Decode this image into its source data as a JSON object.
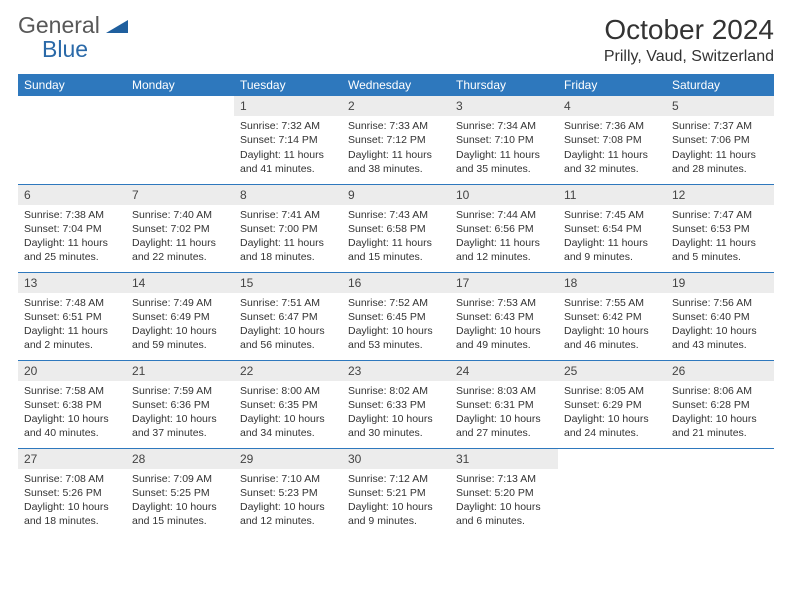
{
  "brand": {
    "name1": "General",
    "name2": "Blue",
    "logo_fill": "#1f5f9e"
  },
  "month_title": "October 2024",
  "location": "Prilly, Vaud, Switzerland",
  "colors": {
    "header_bg": "#2e78bd",
    "header_fg": "#ffffff",
    "daynum_bg": "#ececec",
    "rule": "#2e78bd"
  },
  "day_headers": [
    "Sunday",
    "Monday",
    "Tuesday",
    "Wednesday",
    "Thursday",
    "Friday",
    "Saturday"
  ],
  "weeks": [
    [
      {
        "n": "",
        "sr": "",
        "ss": "",
        "dl": ""
      },
      {
        "n": "",
        "sr": "",
        "ss": "",
        "dl": ""
      },
      {
        "n": "1",
        "sr": "Sunrise: 7:32 AM",
        "ss": "Sunset: 7:14 PM",
        "dl": "Daylight: 11 hours and 41 minutes."
      },
      {
        "n": "2",
        "sr": "Sunrise: 7:33 AM",
        "ss": "Sunset: 7:12 PM",
        "dl": "Daylight: 11 hours and 38 minutes."
      },
      {
        "n": "3",
        "sr": "Sunrise: 7:34 AM",
        "ss": "Sunset: 7:10 PM",
        "dl": "Daylight: 11 hours and 35 minutes."
      },
      {
        "n": "4",
        "sr": "Sunrise: 7:36 AM",
        "ss": "Sunset: 7:08 PM",
        "dl": "Daylight: 11 hours and 32 minutes."
      },
      {
        "n": "5",
        "sr": "Sunrise: 7:37 AM",
        "ss": "Sunset: 7:06 PM",
        "dl": "Daylight: 11 hours and 28 minutes."
      }
    ],
    [
      {
        "n": "6",
        "sr": "Sunrise: 7:38 AM",
        "ss": "Sunset: 7:04 PM",
        "dl": "Daylight: 11 hours and 25 minutes."
      },
      {
        "n": "7",
        "sr": "Sunrise: 7:40 AM",
        "ss": "Sunset: 7:02 PM",
        "dl": "Daylight: 11 hours and 22 minutes."
      },
      {
        "n": "8",
        "sr": "Sunrise: 7:41 AM",
        "ss": "Sunset: 7:00 PM",
        "dl": "Daylight: 11 hours and 18 minutes."
      },
      {
        "n": "9",
        "sr": "Sunrise: 7:43 AM",
        "ss": "Sunset: 6:58 PM",
        "dl": "Daylight: 11 hours and 15 minutes."
      },
      {
        "n": "10",
        "sr": "Sunrise: 7:44 AM",
        "ss": "Sunset: 6:56 PM",
        "dl": "Daylight: 11 hours and 12 minutes."
      },
      {
        "n": "11",
        "sr": "Sunrise: 7:45 AM",
        "ss": "Sunset: 6:54 PM",
        "dl": "Daylight: 11 hours and 9 minutes."
      },
      {
        "n": "12",
        "sr": "Sunrise: 7:47 AM",
        "ss": "Sunset: 6:53 PM",
        "dl": "Daylight: 11 hours and 5 minutes."
      }
    ],
    [
      {
        "n": "13",
        "sr": "Sunrise: 7:48 AM",
        "ss": "Sunset: 6:51 PM",
        "dl": "Daylight: 11 hours and 2 minutes."
      },
      {
        "n": "14",
        "sr": "Sunrise: 7:49 AM",
        "ss": "Sunset: 6:49 PM",
        "dl": "Daylight: 10 hours and 59 minutes."
      },
      {
        "n": "15",
        "sr": "Sunrise: 7:51 AM",
        "ss": "Sunset: 6:47 PM",
        "dl": "Daylight: 10 hours and 56 minutes."
      },
      {
        "n": "16",
        "sr": "Sunrise: 7:52 AM",
        "ss": "Sunset: 6:45 PM",
        "dl": "Daylight: 10 hours and 53 minutes."
      },
      {
        "n": "17",
        "sr": "Sunrise: 7:53 AM",
        "ss": "Sunset: 6:43 PM",
        "dl": "Daylight: 10 hours and 49 minutes."
      },
      {
        "n": "18",
        "sr": "Sunrise: 7:55 AM",
        "ss": "Sunset: 6:42 PM",
        "dl": "Daylight: 10 hours and 46 minutes."
      },
      {
        "n": "19",
        "sr": "Sunrise: 7:56 AM",
        "ss": "Sunset: 6:40 PM",
        "dl": "Daylight: 10 hours and 43 minutes."
      }
    ],
    [
      {
        "n": "20",
        "sr": "Sunrise: 7:58 AM",
        "ss": "Sunset: 6:38 PM",
        "dl": "Daylight: 10 hours and 40 minutes."
      },
      {
        "n": "21",
        "sr": "Sunrise: 7:59 AM",
        "ss": "Sunset: 6:36 PM",
        "dl": "Daylight: 10 hours and 37 minutes."
      },
      {
        "n": "22",
        "sr": "Sunrise: 8:00 AM",
        "ss": "Sunset: 6:35 PM",
        "dl": "Daylight: 10 hours and 34 minutes."
      },
      {
        "n": "23",
        "sr": "Sunrise: 8:02 AM",
        "ss": "Sunset: 6:33 PM",
        "dl": "Daylight: 10 hours and 30 minutes."
      },
      {
        "n": "24",
        "sr": "Sunrise: 8:03 AM",
        "ss": "Sunset: 6:31 PM",
        "dl": "Daylight: 10 hours and 27 minutes."
      },
      {
        "n": "25",
        "sr": "Sunrise: 8:05 AM",
        "ss": "Sunset: 6:29 PM",
        "dl": "Daylight: 10 hours and 24 minutes."
      },
      {
        "n": "26",
        "sr": "Sunrise: 8:06 AM",
        "ss": "Sunset: 6:28 PM",
        "dl": "Daylight: 10 hours and 21 minutes."
      }
    ],
    [
      {
        "n": "27",
        "sr": "Sunrise: 7:08 AM",
        "ss": "Sunset: 5:26 PM",
        "dl": "Daylight: 10 hours and 18 minutes."
      },
      {
        "n": "28",
        "sr": "Sunrise: 7:09 AM",
        "ss": "Sunset: 5:25 PM",
        "dl": "Daylight: 10 hours and 15 minutes."
      },
      {
        "n": "29",
        "sr": "Sunrise: 7:10 AM",
        "ss": "Sunset: 5:23 PM",
        "dl": "Daylight: 10 hours and 12 minutes."
      },
      {
        "n": "30",
        "sr": "Sunrise: 7:12 AM",
        "ss": "Sunset: 5:21 PM",
        "dl": "Daylight: 10 hours and 9 minutes."
      },
      {
        "n": "31",
        "sr": "Sunrise: 7:13 AM",
        "ss": "Sunset: 5:20 PM",
        "dl": "Daylight: 10 hours and 6 minutes."
      },
      {
        "n": "",
        "sr": "",
        "ss": "",
        "dl": ""
      },
      {
        "n": "",
        "sr": "",
        "ss": "",
        "dl": ""
      }
    ]
  ]
}
